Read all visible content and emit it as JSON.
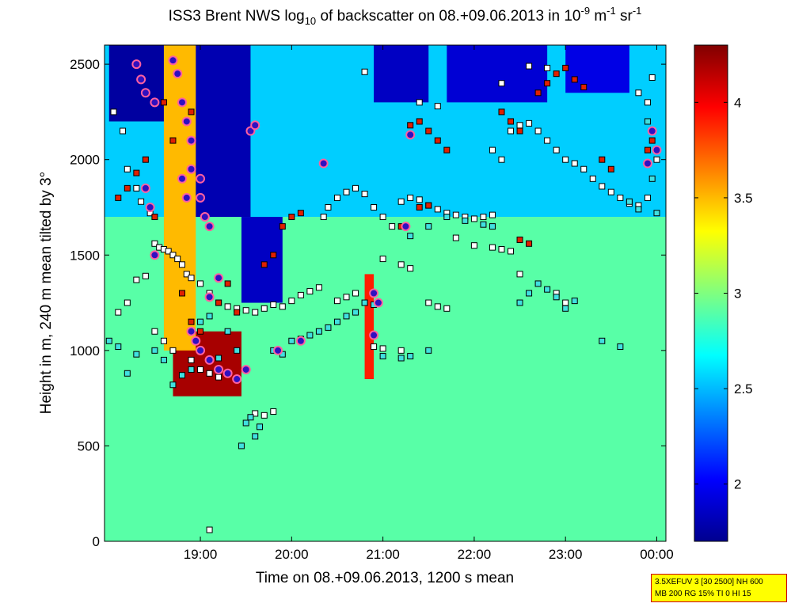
{
  "chart_data": {
    "type": "heatmap",
    "title": {
      "part1": "ISS3 Brent NWS log",
      "sub": "10",
      "part2": " of backscatter on 08.+09.06.2013 in 10",
      "sup1": "-9",
      "part3": " m",
      "sup2": "-1",
      "part4": " sr",
      "sup3": "-1"
    },
    "xlabel": "Time on 08.+09.06.2013, 1200 s mean",
    "ylabel": "Height in m, 240 m mean tilted by 3°",
    "x_ticks": [
      "19:00",
      "20:00",
      "21:00",
      "22:00",
      "23:00",
      "00:00"
    ],
    "x_tick_hours": [
      19,
      20,
      21,
      22,
      23,
      24
    ],
    "xlim": [
      17.95,
      24.1
    ],
    "y_ticks": [
      0,
      500,
      1000,
      1500,
      2000,
      2500
    ],
    "ylim": [
      0,
      2600
    ],
    "colorbar": {
      "ticks": [
        2,
        2.5,
        3,
        3.5,
        4
      ],
      "tick_labels": [
        "2",
        "2.5",
        "3",
        "3.5",
        "4"
      ],
      "range": [
        1.7,
        4.3
      ],
      "colormap": "jet"
    },
    "grid": false,
    "layers": [
      {
        "hour_start": 17.95,
        "hour_end": 24.1,
        "height_start": 0,
        "height_end": 1700,
        "value": 2.9
      },
      {
        "hour_start": 17.95,
        "hour_end": 24.1,
        "height_start": 1700,
        "height_end": 2600,
        "value": 2.55
      },
      {
        "hour_start": 18.0,
        "hour_end": 18.9,
        "height_start": 2200,
        "height_end": 2600,
        "value": 1.75
      },
      {
        "hour_start": 18.9,
        "hour_end": 19.55,
        "height_start": 1700,
        "height_end": 2600,
        "value": 1.8
      },
      {
        "hour_start": 19.45,
        "hour_end": 19.9,
        "height_start": 1250,
        "height_end": 1700,
        "value": 1.85
      },
      {
        "hour_start": 20.9,
        "hour_end": 21.5,
        "height_start": 2300,
        "height_end": 2600,
        "value": 1.85
      },
      {
        "hour_start": 21.7,
        "hour_end": 22.8,
        "height_start": 2300,
        "height_end": 2600,
        "value": 1.9
      },
      {
        "hour_start": 23.0,
        "hour_end": 23.7,
        "height_start": 2350,
        "height_end": 2600,
        "value": 1.95
      },
      {
        "hour_start": 18.7,
        "hour_end": 19.45,
        "height_start": 760,
        "height_end": 1100,
        "value": 4.2
      },
      {
        "hour_start": 18.6,
        "hour_end": 18.95,
        "height_start": 1000,
        "height_end": 2600,
        "value": 3.5
      },
      {
        "hour_start": 20.8,
        "hour_end": 20.9,
        "height_start": 850,
        "height_end": 1400,
        "value": 3.9
      }
    ],
    "series": [
      {
        "marker": "white-square",
        "points": [
          [
            18.05,
            2250
          ],
          [
            18.15,
            2150
          ],
          [
            18.2,
            1950
          ],
          [
            18.3,
            1850
          ],
          [
            18.35,
            1780
          ],
          [
            18.45,
            1720
          ],
          [
            18.5,
            1560
          ],
          [
            18.55,
            1540
          ],
          [
            18.6,
            1530
          ],
          [
            18.65,
            1520
          ],
          [
            18.7,
            1500
          ],
          [
            18.75,
            1480
          ],
          [
            18.8,
            1450
          ],
          [
            18.85,
            1400
          ],
          [
            18.9,
            1380
          ],
          [
            19.0,
            1350
          ],
          [
            19.1,
            1300
          ],
          [
            19.2,
            1250
          ],
          [
            19.3,
            1230
          ],
          [
            19.4,
            1220
          ],
          [
            19.5,
            1210
          ],
          [
            19.6,
            1200
          ],
          [
            19.7,
            1220
          ],
          [
            19.8,
            1240
          ],
          [
            19.9,
            1230
          ],
          [
            20.0,
            1260
          ],
          [
            20.1,
            1290
          ],
          [
            20.2,
            1310
          ],
          [
            20.3,
            1330
          ],
          [
            20.35,
            1700
          ],
          [
            20.4,
            1750
          ],
          [
            20.5,
            1800
          ],
          [
            20.6,
            1830
          ],
          [
            20.7,
            1850
          ],
          [
            20.8,
            1820
          ],
          [
            20.9,
            1750
          ],
          [
            21.0,
            1700
          ],
          [
            21.1,
            1650
          ],
          [
            21.2,
            1780
          ],
          [
            21.3,
            1800
          ],
          [
            21.4,
            1790
          ],
          [
            21.5,
            1760
          ],
          [
            21.6,
            1740
          ],
          [
            21.7,
            1720
          ],
          [
            21.8,
            1710
          ],
          [
            21.9,
            1700
          ],
          [
            22.0,
            1690
          ],
          [
            22.1,
            1700
          ],
          [
            22.2,
            1710
          ],
          [
            22.4,
            2150
          ],
          [
            22.5,
            2180
          ],
          [
            22.6,
            2190
          ],
          [
            22.7,
            2150
          ],
          [
            22.8,
            2100
          ],
          [
            22.9,
            2050
          ],
          [
            23.0,
            2000
          ],
          [
            23.1,
            1980
          ],
          [
            23.2,
            1950
          ],
          [
            23.3,
            1900
          ],
          [
            23.4,
            1860
          ],
          [
            23.5,
            1830
          ],
          [
            23.6,
            1800
          ],
          [
            23.7,
            1770
          ],
          [
            23.8,
            1760
          ],
          [
            23.9,
            1800
          ],
          [
            24.0,
            2000
          ],
          [
            22.3,
            2000
          ],
          [
            22.2,
            2050
          ],
          [
            21.2,
            1450
          ],
          [
            21.3,
            1430
          ],
          [
            21.0,
            1480
          ],
          [
            22.0,
            1550
          ],
          [
            22.2,
            1540
          ],
          [
            22.3,
            1530
          ],
          [
            22.4,
            1520
          ],
          [
            21.5,
            1250
          ],
          [
            21.6,
            1230
          ],
          [
            21.7,
            1220
          ],
          [
            21.2,
            1000
          ],
          [
            21.0,
            1010
          ],
          [
            20.9,
            1020
          ],
          [
            20.7,
            1300
          ],
          [
            20.6,
            1280
          ],
          [
            20.5,
            1260
          ],
          [
            21.8,
            1590
          ],
          [
            23.0,
            1250
          ],
          [
            22.9,
            1300
          ],
          [
            22.5,
            1400
          ],
          [
            23.8,
            2350
          ],
          [
            23.9,
            2300
          ],
          [
            23.95,
            2430
          ],
          [
            22.6,
            2490
          ],
          [
            22.8,
            2480
          ],
          [
            22.3,
            2400
          ],
          [
            21.6,
            2280
          ],
          [
            21.4,
            2300
          ],
          [
            20.8,
            2460
          ],
          [
            18.1,
            1200
          ],
          [
            18.2,
            1250
          ],
          [
            18.3,
            1370
          ],
          [
            18.4,
            1390
          ],
          [
            18.5,
            1100
          ],
          [
            18.6,
            1050
          ],
          [
            18.7,
            1000
          ],
          [
            18.9,
            950
          ],
          [
            19.0,
            900
          ],
          [
            19.1,
            880
          ],
          [
            19.2,
            860
          ],
          [
            19.6,
            670
          ],
          [
            19.7,
            660
          ],
          [
            19.8,
            680
          ],
          [
            19.1,
            60
          ]
        ]
      },
      {
        "marker": "cyan-square",
        "points": [
          [
            18.0,
            1050
          ],
          [
            18.1,
            1020
          ],
          [
            18.2,
            880
          ],
          [
            18.3,
            980
          ],
          [
            18.5,
            1000
          ],
          [
            18.6,
            950
          ],
          [
            18.7,
            820
          ],
          [
            18.8,
            870
          ],
          [
            18.9,
            900
          ],
          [
            19.2,
            960
          ],
          [
            19.4,
            1000
          ],
          [
            19.5,
            620
          ],
          [
            19.55,
            650
          ],
          [
            19.6,
            550
          ],
          [
            19.65,
            600
          ],
          [
            19.45,
            500
          ],
          [
            19.8,
            1000
          ],
          [
            19.9,
            980
          ],
          [
            20.0,
            1050
          ],
          [
            20.1,
            1060
          ],
          [
            20.2,
            1080
          ],
          [
            20.3,
            1100
          ],
          [
            20.4,
            1120
          ],
          [
            20.5,
            1150
          ],
          [
            20.6,
            1180
          ],
          [
            20.7,
            1200
          ],
          [
            21.0,
            970
          ],
          [
            21.2,
            960
          ],
          [
            21.3,
            970
          ],
          [
            21.5,
            1000
          ],
          [
            21.3,
            1600
          ],
          [
            21.5,
            1650
          ],
          [
            21.7,
            1700
          ],
          [
            21.9,
            1680
          ],
          [
            22.1,
            1660
          ],
          [
            22.2,
            1650
          ],
          [
            22.5,
            1250
          ],
          [
            22.6,
            1300
          ],
          [
            22.7,
            1350
          ],
          [
            22.8,
            1320
          ],
          [
            22.9,
            1280
          ],
          [
            23.0,
            1220
          ],
          [
            23.1,
            1260
          ],
          [
            23.4,
            1050
          ],
          [
            23.6,
            1020
          ],
          [
            23.7,
            1780
          ],
          [
            23.8,
            1740
          ],
          [
            24.0,
            1720
          ],
          [
            23.95,
            1900
          ],
          [
            23.9,
            2200
          ],
          [
            19.0,
            1150
          ],
          [
            19.1,
            1180
          ],
          [
            19.3,
            1100
          ],
          [
            20.8,
            1250
          ],
          [
            20.9,
            1240
          ]
        ]
      },
      {
        "marker": "red-square",
        "points": [
          [
            18.1,
            1800
          ],
          [
            18.2,
            1850
          ],
          [
            18.3,
            1930
          ],
          [
            18.4,
            2000
          ],
          [
            18.5,
            1700
          ],
          [
            18.6,
            2300
          ],
          [
            18.7,
            2100
          ],
          [
            18.8,
            1900
          ],
          [
            18.9,
            2250
          ],
          [
            19.2,
            1250
          ],
          [
            19.3,
            1350
          ],
          [
            19.4,
            1200
          ],
          [
            19.7,
            1450
          ],
          [
            19.8,
            1500
          ],
          [
            19.9,
            1650
          ],
          [
            20.0,
            1700
          ],
          [
            20.1,
            1720
          ],
          [
            21.3,
            2180
          ],
          [
            21.4,
            2200
          ],
          [
            21.5,
            2150
          ],
          [
            21.6,
            2100
          ],
          [
            21.7,
            2050
          ],
          [
            22.3,
            2250
          ],
          [
            22.4,
            2200
          ],
          [
            22.5,
            2150
          ],
          [
            22.7,
            2350
          ],
          [
            22.8,
            2400
          ],
          [
            22.9,
            2450
          ],
          [
            23.0,
            2480
          ],
          [
            23.1,
            2420
          ],
          [
            23.2,
            2380
          ],
          [
            23.4,
            2000
          ],
          [
            23.5,
            1950
          ],
          [
            23.9,
            2050
          ],
          [
            23.95,
            2100
          ],
          [
            18.8,
            1300
          ],
          [
            18.9,
            1150
          ],
          [
            19.0,
            1100
          ],
          [
            22.5,
            1580
          ],
          [
            22.6,
            1560
          ],
          [
            21.4,
            1750
          ],
          [
            21.5,
            1760
          ],
          [
            21.2,
            1650
          ]
        ]
      },
      {
        "marker": "purple-circle",
        "points": [
          [
            18.3,
            2500
          ],
          [
            18.35,
            2420
          ],
          [
            18.4,
            2350
          ],
          [
            18.5,
            2300
          ],
          [
            18.4,
            1850
          ],
          [
            18.45,
            1750
          ],
          [
            18.5,
            1500
          ],
          [
            18.7,
            2520
          ],
          [
            18.75,
            2450
          ],
          [
            18.8,
            2300
          ],
          [
            18.85,
            2200
          ],
          [
            18.9,
            2100
          ],
          [
            18.9,
            1950
          ],
          [
            19.0,
            1900
          ],
          [
            19.0,
            1800
          ],
          [
            19.05,
            1700
          ],
          [
            19.1,
            1650
          ],
          [
            18.9,
            1100
          ],
          [
            18.95,
            1050
          ],
          [
            19.0,
            1000
          ],
          [
            19.1,
            950
          ],
          [
            19.2,
            900
          ],
          [
            19.3,
            880
          ],
          [
            19.4,
            850
          ],
          [
            19.5,
            900
          ],
          [
            19.1,
            1280
          ],
          [
            19.2,
            1380
          ],
          [
            19.55,
            2150
          ],
          [
            19.6,
            2180
          ],
          [
            20.35,
            1980
          ],
          [
            20.9,
            1300
          ],
          [
            20.95,
            1250
          ],
          [
            20.9,
            1080
          ],
          [
            21.3,
            2130
          ],
          [
            21.25,
            1650
          ],
          [
            23.95,
            2150
          ],
          [
            24.0,
            2050
          ],
          [
            23.9,
            1980
          ],
          [
            19.85,
            1000
          ],
          [
            20.1,
            1050
          ],
          [
            18.8,
            1900
          ],
          [
            18.85,
            1800
          ]
        ]
      }
    ]
  },
  "info_box": {
    "line1": "3.5XEFUV 3 [30 2500] NH 600",
    "line2": "MB 200 RG 15% TI 0 HI 15"
  }
}
